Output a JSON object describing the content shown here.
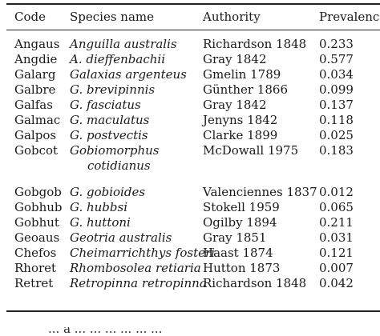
{
  "table": {
    "headers": {
      "code": "Code",
      "species": "Species name",
      "authority": "Authority",
      "prevalence": "Prevalence"
    },
    "rows": [
      {
        "code": "Angaus",
        "species": "Anguilla australis",
        "authority": "Richardson 1848",
        "prevalence": "0.233"
      },
      {
        "code": "Angdie",
        "species": "A. dieffenbachii",
        "authority": "Gray 1842",
        "prevalence": "0.577"
      },
      {
        "code": "Galarg",
        "species": "Galaxias argenteus",
        "authority": "Gmelin 1789",
        "prevalence": "0.034"
      },
      {
        "code": "Galbre",
        "species": "G. brevipinnis",
        "authority": "Günther 1866",
        "prevalence": "0.099"
      },
      {
        "code": "Galfas",
        "species": "G. fasciatus",
        "authority": "Gray 1842",
        "prevalence": "0.137"
      },
      {
        "code": "Galmac",
        "species": "G. maculatus",
        "authority": "Jenyns 1842",
        "prevalence": "0.118"
      },
      {
        "code": "Galpos",
        "species": "G. postvectis",
        "authority": "Clarke 1899",
        "prevalence": "0.025"
      },
      {
        "code": "Gobcot",
        "species": "Gobiomorphus",
        "species2": "cotidianus",
        "authority": "McDowall 1975",
        "prevalence": "0.183"
      },
      {
        "code": "Gobgob",
        "species": "G. gobioides",
        "authority": "Valenciennes 1837",
        "prevalence": "0.012"
      },
      {
        "code": "Gobhub",
        "species": "G. hubbsi",
        "authority": "Stokell 1959",
        "prevalence": "0.065"
      },
      {
        "code": "Gobhut",
        "species": "G. huttoni",
        "authority": "Ogilby 1894",
        "prevalence": "0.211"
      },
      {
        "code": "Geoaus",
        "species": "Geotria australis",
        "authority": "Gray 1851",
        "prevalence": "0.031"
      },
      {
        "code": "Chefos",
        "species": "Cheimarrichthys fosteri",
        "authority": "Haast 1874",
        "prevalence": "0.121"
      },
      {
        "code": "Rhoret",
        "species": "Rhombosolea retiaria",
        "authority": "Hutton 1873",
        "prevalence": "0.007"
      },
      {
        "code": "Retret",
        "species": "Retropinna retropinna",
        "authority": "Richardson 1848",
        "prevalence": "0.042"
      }
    ]
  },
  "footer": {
    "partial_text": "... a ... ... ... ... ... ..."
  }
}
